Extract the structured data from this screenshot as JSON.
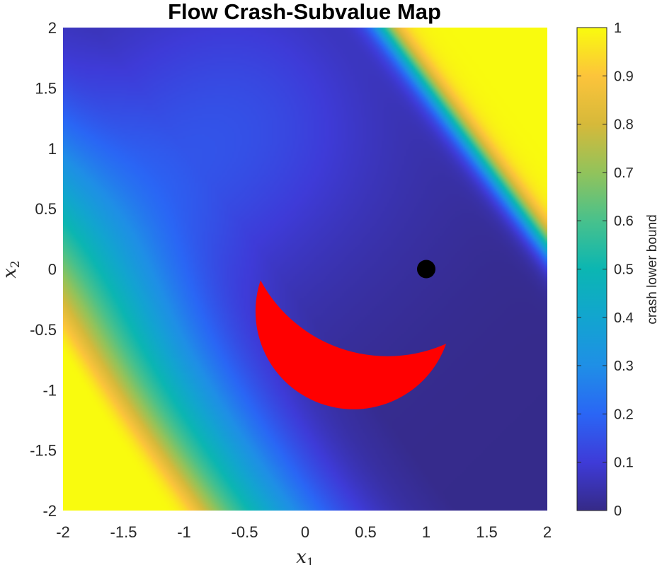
{
  "chart_data": {
    "type": "heatmap",
    "title": "Flow Crash-Subvalue Map",
    "xlabel": {
      "base": "x",
      "sub": "1"
    },
    "ylabel": {
      "base": "x",
      "sub": "2"
    },
    "xlim": [
      -2,
      2
    ],
    "ylim": [
      -2,
      2
    ],
    "xticks": [
      -2,
      -1.5,
      -1,
      -0.5,
      0,
      0.5,
      1,
      1.5,
      2
    ],
    "xtick_labels": [
      "-2",
      "-1.5",
      "-1",
      "-0.5",
      "0",
      "0.5",
      "1",
      "1.5",
      "2"
    ],
    "yticks": [
      2,
      1.5,
      1,
      0.5,
      0,
      -0.5,
      -1,
      -1.5,
      -2
    ],
    "ytick_labels": [
      "2",
      "1.5",
      "1",
      "0.5",
      "0",
      "-0.5",
      "-1",
      "-1.5",
      "-2"
    ],
    "colorbar": {
      "label": "crash lower bound",
      "range": [
        0,
        1
      ],
      "ticks": [
        1,
        0.9,
        0.8,
        0.7,
        0.6,
        0.5,
        0.4,
        0.3,
        0.2,
        0.1,
        0
      ],
      "tick_labels": [
        "1",
        "0.9",
        "0.8",
        "0.7",
        "0.6",
        "0.5",
        "0.4",
        "0.3",
        "0.2",
        "0.1",
        "0"
      ],
      "colormap": "parula"
    },
    "field": {
      "description_of_values": "value rises toward upper-right and lower-left corners (1.0), minimum ~0.02 in the central and lower-right valley",
      "sample_values": {
        "corner_top_right": 1.0,
        "corner_bottom_left": 1.0,
        "corner_top_left": 0.22,
        "corner_bottom_right": 0.03,
        "center": 0.05
      }
    },
    "unsafe_region": {
      "shape": "crescent",
      "color": "#ff0000",
      "outer_center": [
        0.4,
        -0.35
      ],
      "outer_radius": 0.81,
      "inner_center": [
        0.68,
        0.47
      ],
      "inner_radius": 1.19
    },
    "marker": {
      "x": 1.0,
      "y": 0.0,
      "color": "#000000"
    }
  }
}
